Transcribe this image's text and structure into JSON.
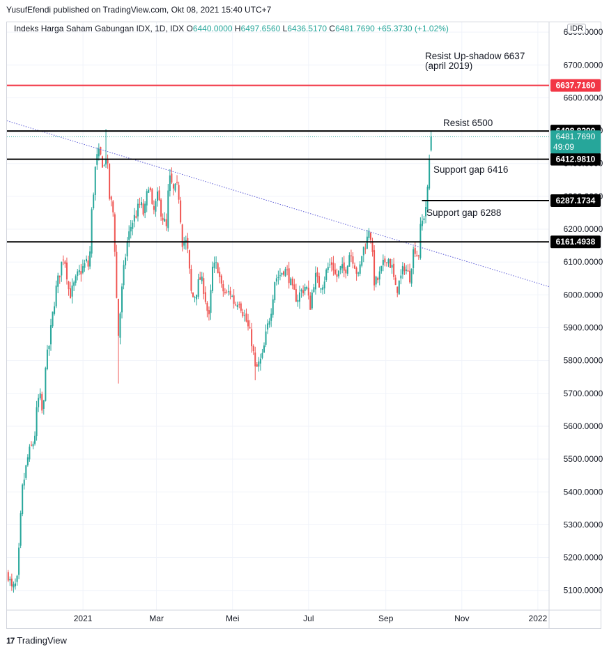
{
  "publisher_line": "YusufEfendi published on TradingView.com, Okt 08, 2021 15:40 UTC+7",
  "legend": {
    "symbol": "Indeks Harga Saham Gabungan IDX, 1D, IDX",
    "open_label": "O",
    "open": "6440.0000",
    "high_label": "H",
    "high": "6497.6560",
    "low_label": "L",
    "low": "6436.5170",
    "close_label": "C",
    "close": "6481.7690",
    "change": "+65.3730 (+1.02%)"
  },
  "currency": "IDR",
  "brand": {
    "logo": "17",
    "name": "TradingView"
  },
  "annotations": {
    "resist_upshadow_1": "Resist Up-shadow 6637",
    "resist_upshadow_2": "(april 2019)",
    "resist_6500": "Resist 6500",
    "support_6416": "Support gap 6416",
    "support_6288": "Support gap 6288"
  },
  "colors": {
    "up": "#26a69a",
    "down": "#ef5350",
    "red_line": "#f23645",
    "trend": "#5b5bd6",
    "black_line": "#000000"
  },
  "chart_data": {
    "type": "candlestick",
    "title": "Indeks Harga Saham Gabungan IDX, 1D, IDX",
    "ylim": [
      5040,
      6830
    ],
    "y_ticks": [
      "6800.0000",
      "6700.0000",
      "6600.0000",
      "6500.0000",
      "6400.0000",
      "6300.0000",
      "6200.0000",
      "6100.0000",
      "6000.0000",
      "5900.0000",
      "5800.0000",
      "5700.0000",
      "5600.0000",
      "5500.0000",
      "5400.0000",
      "5300.0000",
      "5200.0000",
      "5100.0000"
    ],
    "x_ticks": [
      "2021",
      "Mar",
      "Mei",
      "Jul",
      "Sep",
      "Nov",
      "2022"
    ],
    "horizontal_levels": [
      {
        "value": 6637.716,
        "label": "6637.7160",
        "color": "#f23645"
      },
      {
        "value": 6498.829,
        "label": "6498.8290",
        "color": "#000000"
      },
      {
        "value": 6412.981,
        "label": "6412.9810",
        "color": "#000000"
      },
      {
        "value": 6287.1734,
        "label": "6287.1734",
        "color": "#000000"
      },
      {
        "value": 6161.4938,
        "label": "6161.4938",
        "color": "#000000"
      }
    ],
    "last_price": {
      "value": 6481.769,
      "label": "6481.7690",
      "countdown": "49:09"
    },
    "trendline": {
      "start": [
        "2020-11-01",
        6530
      ],
      "end": [
        "2022-01-10",
        6025
      ]
    },
    "price_path": [
      [
        "2020-11-02",
        5150
      ],
      [
        "2020-11-05",
        5100
      ],
      [
        "2020-11-09",
        5120
      ],
      [
        "2020-11-11",
        5240
      ],
      [
        "2020-11-13",
        5400
      ],
      [
        "2020-11-18",
        5510
      ],
      [
        "2020-11-23",
        5560
      ],
      [
        "2020-11-25",
        5650
      ],
      [
        "2020-11-27",
        5700
      ],
      [
        "2020-11-30",
        5620
      ],
      [
        "2020-12-02",
        5800
      ],
      [
        "2020-12-04",
        5820
      ],
      [
        "2020-12-08",
        5950
      ],
      [
        "2020-12-10",
        6010
      ],
      [
        "2020-12-14",
        6080
      ],
      [
        "2020-12-16",
        6120
      ],
      [
        "2020-12-18",
        6100
      ],
      [
        "2020-12-21",
        6000
      ],
      [
        "2020-12-23",
        6010
      ],
      [
        "2020-12-28",
        6060
      ],
      [
        "2021-01-04",
        6100
      ],
      [
        "2021-01-06",
        6080
      ],
      [
        "2021-01-08",
        6250
      ],
      [
        "2021-01-11",
        6390
      ],
      [
        "2021-01-13",
        6430
      ],
      [
        "2021-01-15",
        6420
      ],
      [
        "2021-01-18",
        6390
      ],
      [
        "2021-01-20",
        6440
      ],
      [
        "2021-01-22",
        6300
      ],
      [
        "2021-01-25",
        6260
      ],
      [
        "2021-01-27",
        6110
      ],
      [
        "2021-01-29",
        5860
      ],
      [
        "2021-02-02",
        6050
      ],
      [
        "2021-02-05",
        6150
      ],
      [
        "2021-02-09",
        6220
      ],
      [
        "2021-02-12",
        6240
      ],
      [
        "2021-02-16",
        6280
      ],
      [
        "2021-02-19",
        6240
      ],
      [
        "2021-02-23",
        6350
      ],
      [
        "2021-02-26",
        6240
      ],
      [
        "2021-03-02",
        6300
      ],
      [
        "2021-03-05",
        6250
      ],
      [
        "2021-03-09",
        6200
      ],
      [
        "2021-03-11",
        6360
      ],
      [
        "2021-03-15",
        6310
      ],
      [
        "2021-03-17",
        6330
      ],
      [
        "2021-03-19",
        6300
      ],
      [
        "2021-03-22",
        6150
      ],
      [
        "2021-03-24",
        6170
      ],
      [
        "2021-03-26",
        6130
      ],
      [
        "2021-03-29",
        6000
      ],
      [
        "2021-03-31",
        5990
      ],
      [
        "2021-04-05",
        6050
      ],
      [
        "2021-04-08",
        6020
      ],
      [
        "2021-04-12",
        5920
      ],
      [
        "2021-04-15",
        6080
      ],
      [
        "2021-04-19",
        6090
      ],
      [
        "2021-04-22",
        6020
      ],
      [
        "2021-04-26",
        6000
      ],
      [
        "2021-04-29",
        6010
      ],
      [
        "2021-05-03",
        5970
      ],
      [
        "2021-05-06",
        5990
      ],
      [
        "2021-05-10",
        5940
      ],
      [
        "2021-05-12",
        5920
      ],
      [
        "2021-05-17",
        5850
      ],
      [
        "2021-05-19",
        5770
      ],
      [
        "2021-05-21",
        5780
      ],
      [
        "2021-05-25",
        5810
      ],
      [
        "2021-05-28",
        5880
      ],
      [
        "2021-06-01",
        5960
      ],
      [
        "2021-06-04",
        6050
      ],
      [
        "2021-06-08",
        6060
      ],
      [
        "2021-06-11",
        6080
      ],
      [
        "2021-06-15",
        6060
      ],
      [
        "2021-06-18",
        6010
      ],
      [
        "2021-06-22",
        5990
      ],
      [
        "2021-06-25",
        6010
      ],
      [
        "2021-06-29",
        6030
      ],
      [
        "2021-07-02",
        5960
      ],
      [
        "2021-07-06",
        6060
      ],
      [
        "2021-07-09",
        6030
      ],
      [
        "2021-07-13",
        6040
      ],
      [
        "2021-07-16",
        6080
      ],
      [
        "2021-07-20",
        6100
      ],
      [
        "2021-07-23",
        6050
      ],
      [
        "2021-07-27",
        6080
      ],
      [
        "2021-07-30",
        6070
      ],
      [
        "2021-08-03",
        6130
      ],
      [
        "2021-08-06",
        6110
      ],
      [
        "2021-08-10",
        6050
      ],
      [
        "2021-08-13",
        6130
      ],
      [
        "2021-08-17",
        6170
      ],
      [
        "2021-08-19",
        6220
      ],
      [
        "2021-08-23",
        6030
      ],
      [
        "2021-08-26",
        6050
      ],
      [
        "2021-08-30",
        6090
      ],
      [
        "2021-09-02",
        6120
      ],
      [
        "2021-09-06",
        6080
      ],
      [
        "2021-09-09",
        6010
      ],
      [
        "2021-09-13",
        6050
      ],
      [
        "2021-09-16",
        6090
      ],
      [
        "2021-09-20",
        6050
      ],
      [
        "2021-09-22",
        6110
      ],
      [
        "2021-09-24",
        6150
      ],
      [
        "2021-09-27",
        6110
      ],
      [
        "2021-09-29",
        6210
      ],
      [
        "2021-10-01",
        6230
      ],
      [
        "2021-10-04",
        6290
      ],
      [
        "2021-10-05",
        6340
      ],
      [
        "2021-10-06",
        6420
      ],
      [
        "2021-10-07",
        6416
      ],
      [
        "2021-10-08",
        6481.769
      ]
    ],
    "high_extremes": [
      [
        "2021-01-20",
        6505
      ]
    ],
    "low_extremes": [
      [
        "2021-01-29",
        5730
      ],
      [
        "2021-05-19",
        5740
      ]
    ]
  }
}
